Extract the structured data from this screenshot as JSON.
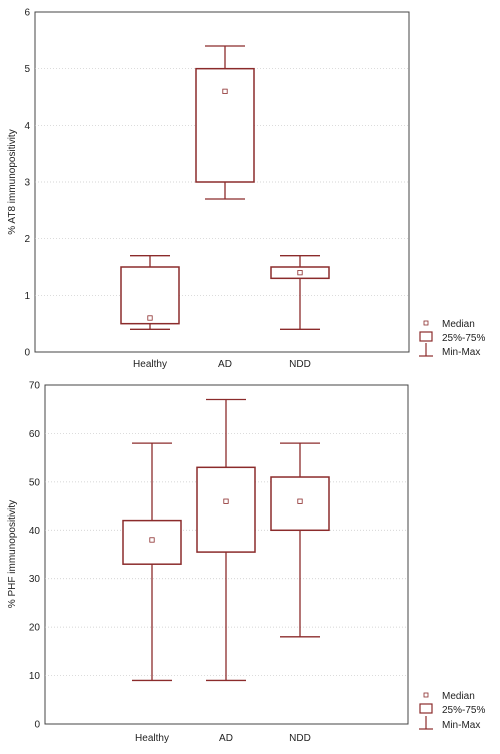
{
  "colors": {
    "box": "#8b2b2b",
    "grid": "#c8c8c8",
    "frame": "#444444",
    "text": "#222222"
  },
  "legend": {
    "median": "Median",
    "quartiles": "25%-75%",
    "range": "Min-Max"
  },
  "chart_data": [
    {
      "type": "boxplot",
      "title": "",
      "xlabel": "",
      "ylabel": "% AT8 immunopositivity",
      "ylim": [
        0,
        6
      ],
      "yticks": [
        0,
        1,
        2,
        3,
        4,
        5,
        6
      ],
      "ytick_labels": [
        "0",
        "1",
        "2",
        "3",
        "4",
        "5",
        "6"
      ],
      "grid": true,
      "legend_position": "outside-right-bottom",
      "categories": [
        "Healthy",
        "AD",
        "NDD"
      ],
      "series": [
        {
          "category": "Healthy",
          "min": 0.4,
          "q1": 0.5,
          "median": 0.6,
          "q3": 1.5,
          "max": 1.7
        },
        {
          "category": "AD",
          "min": 2.7,
          "q1": 3.0,
          "median": 4.6,
          "q3": 5.0,
          "max": 5.4
        },
        {
          "category": "NDD",
          "min": 0.4,
          "q1": 1.3,
          "median": 1.4,
          "q3": 1.5,
          "max": 1.7
        }
      ]
    },
    {
      "type": "boxplot",
      "title": "",
      "xlabel": "",
      "ylabel": "% PHF immunopositivity",
      "ylim": [
        0,
        70
      ],
      "yticks": [
        0,
        10,
        20,
        30,
        40,
        50,
        60,
        70
      ],
      "ytick_labels": [
        "0",
        "10",
        "20",
        "30",
        "40",
        "50",
        "60",
        "70"
      ],
      "grid": true,
      "legend_position": "outside-right-bottom",
      "categories": [
        "Healthy",
        "AD",
        "NDD"
      ],
      "series": [
        {
          "category": "Healthy",
          "min": 9,
          "q1": 33,
          "median": 38,
          "q3": 42,
          "max": 58
        },
        {
          "category": "AD",
          "min": 9,
          "q1": 35.5,
          "median": 46,
          "q3": 53,
          "max": 67
        },
        {
          "category": "NDD",
          "min": 18,
          "q1": 40,
          "median": 46,
          "q3": 51,
          "max": 58
        }
      ]
    }
  ]
}
